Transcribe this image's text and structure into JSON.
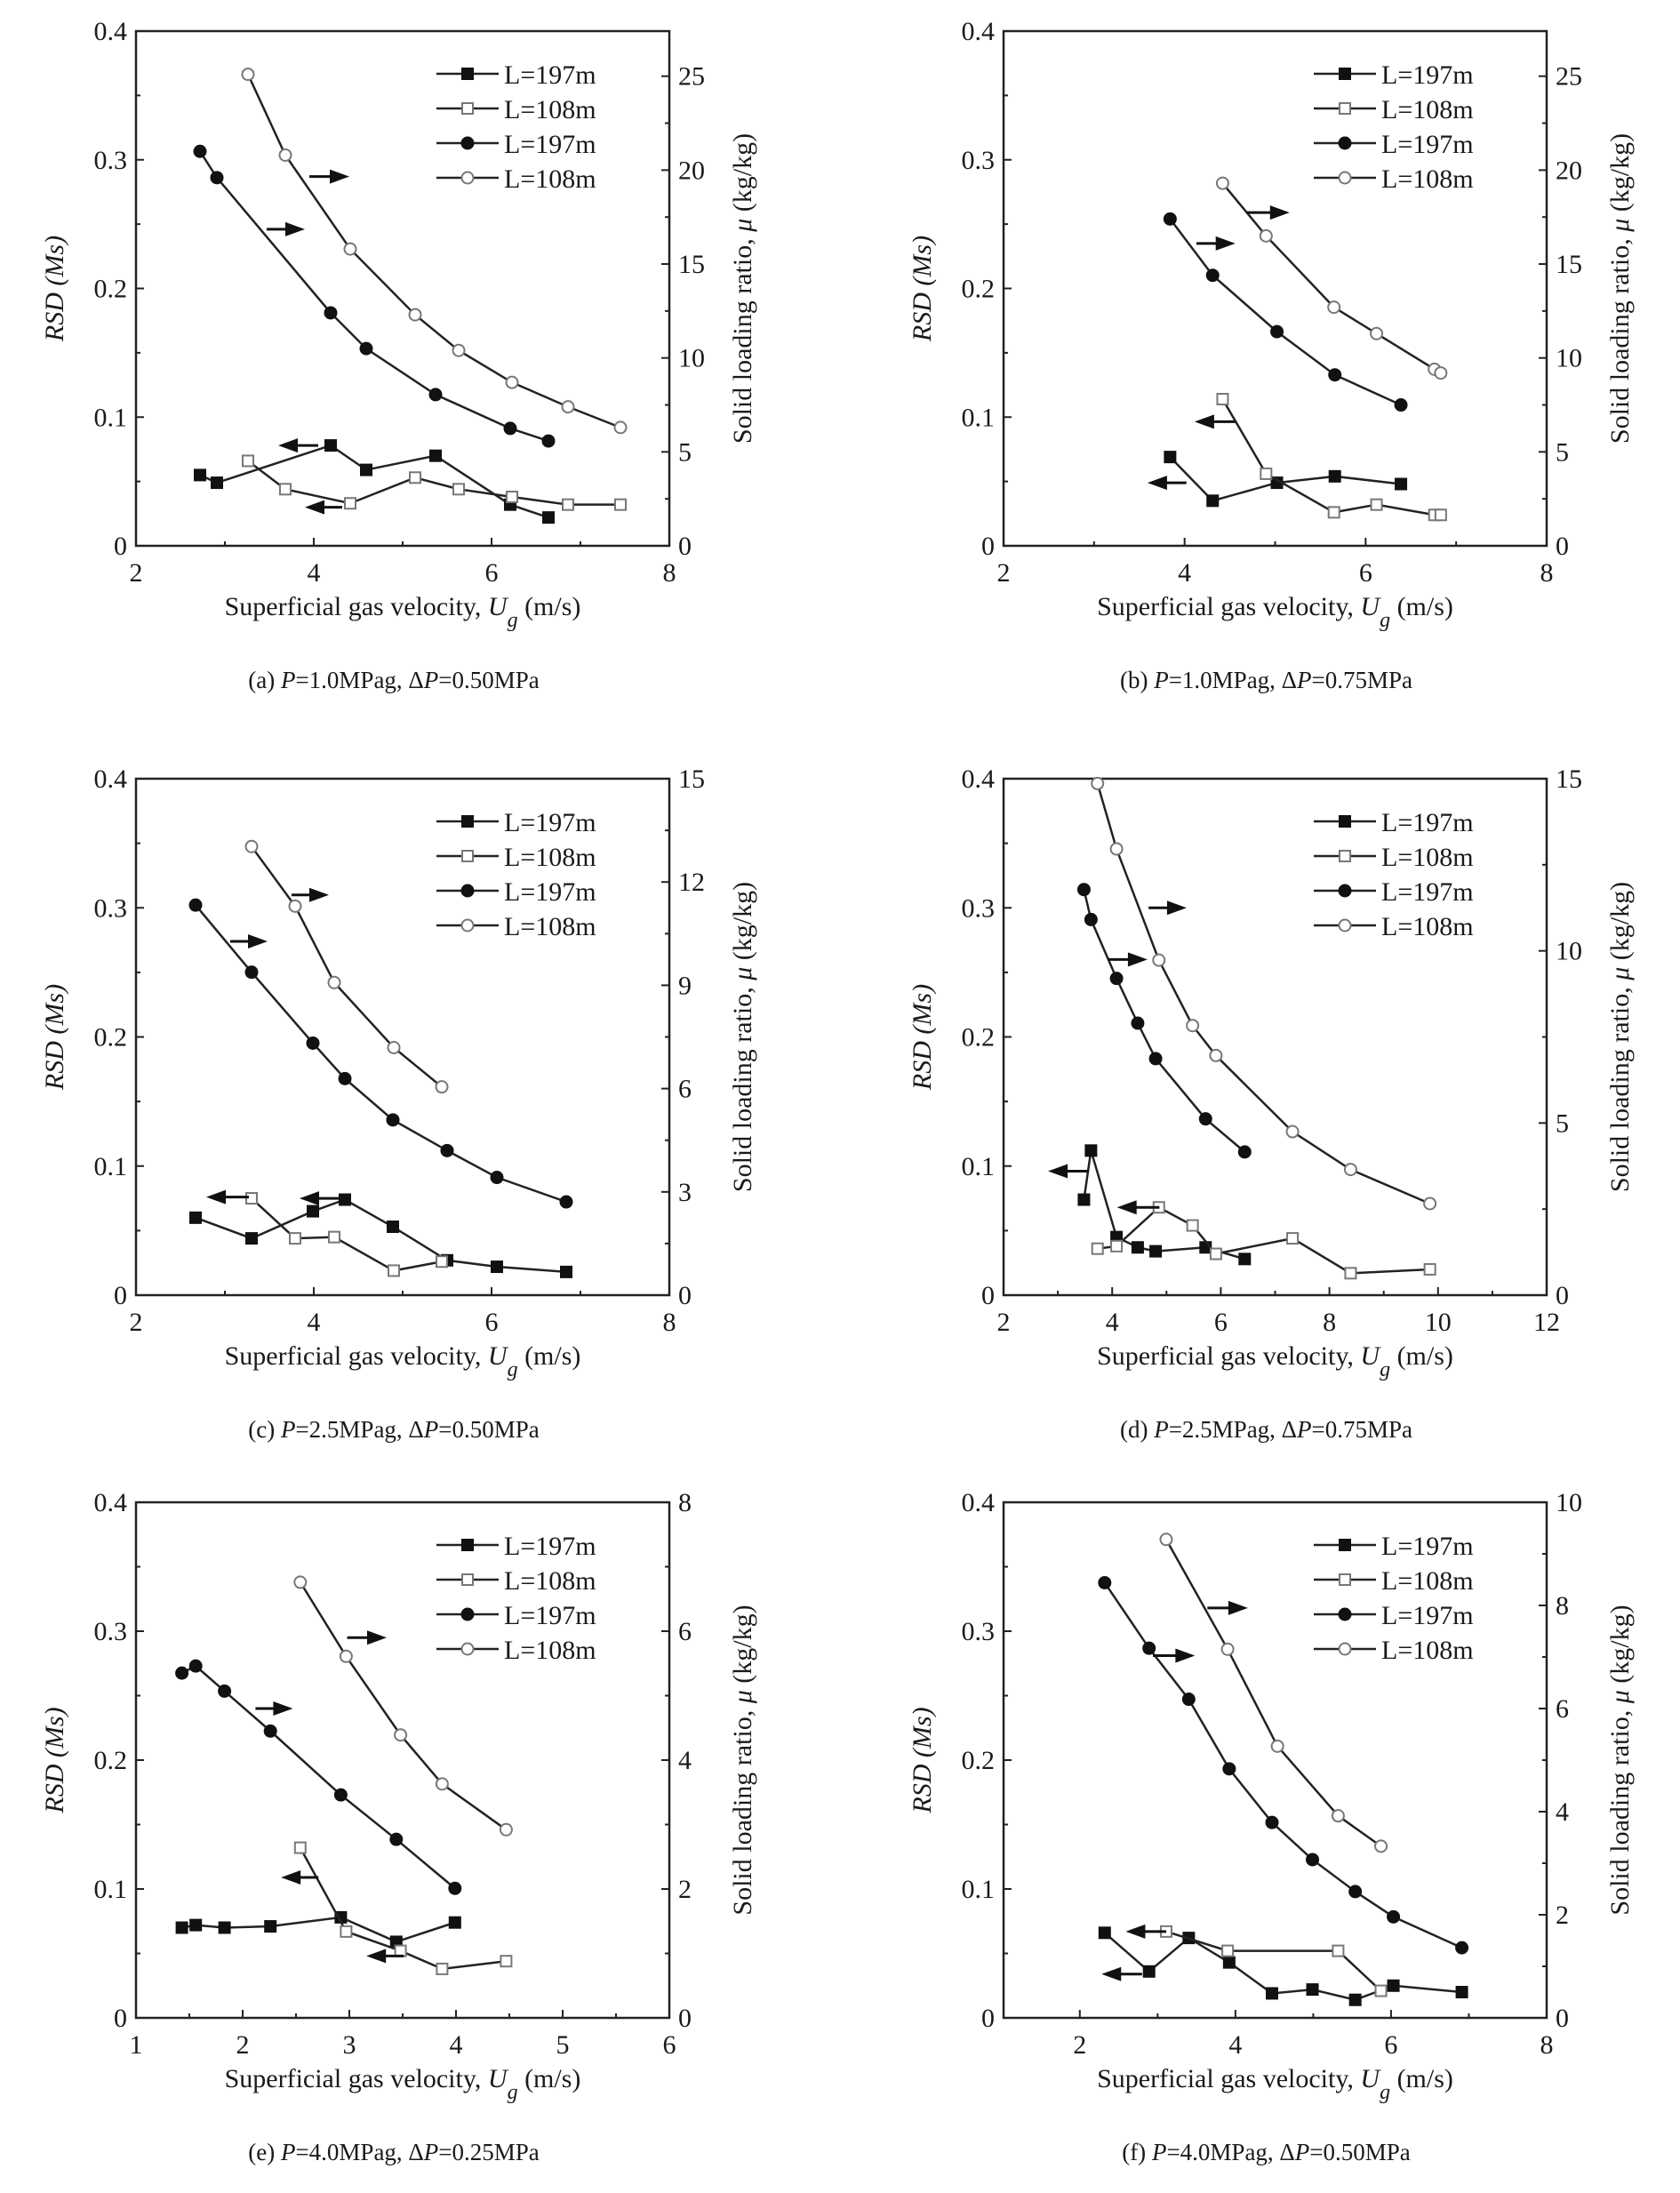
{
  "legend": [
    "L=197m",
    "L=108m",
    "L=197m",
    "L=108m"
  ],
  "chart_data": [
    {
      "type": "line",
      "caption": "(a) P=1.0MPag, ΔP=0.50MPa",
      "xlabel": "Superficial gas velocity, Ug (m/s)",
      "ylabel": "RSD (Ms)",
      "y2label": "Solid loading ratio, μ (kg/kg)",
      "xlim": [
        2,
        8
      ],
      "xticks": [
        2,
        4,
        6,
        8
      ],
      "ylim": [
        0,
        0.4
      ],
      "yticks": [
        0,
        0.1,
        0.2,
        0.3,
        0.4
      ],
      "y2lim": [
        0,
        27.4
      ],
      "y2ticks": [
        0,
        5,
        10,
        15,
        20,
        25
      ],
      "legend_position": "top-right",
      "series": [
        {
          "name": "L=197m",
          "marker": "square-filled",
          "axis": "left",
          "x": [
            2.72,
            2.91,
            4.19,
            4.59,
            5.37,
            6.21,
            6.64
          ],
          "y": [
            0.055,
            0.049,
            0.078,
            0.059,
            0.07,
            0.032,
            0.022
          ]
        },
        {
          "name": "L=108m",
          "marker": "square-open",
          "axis": "left",
          "x": [
            3.26,
            3.68,
            4.41,
            5.14,
            5.63,
            6.23,
            6.86,
            7.45
          ],
          "y": [
            0.066,
            0.044,
            0.033,
            0.053,
            0.044,
            0.038,
            0.032,
            0.032
          ]
        },
        {
          "name": "L=197m",
          "marker": "circle-filled",
          "axis": "right",
          "x": [
            2.72,
            2.91,
            4.19,
            4.59,
            5.37,
            6.21,
            6.64
          ],
          "y": [
            21.0,
            19.6,
            12.4,
            10.5,
            8.05,
            6.25,
            5.58
          ]
        },
        {
          "name": "L=108m",
          "marker": "circle-open",
          "axis": "right",
          "x": [
            3.26,
            3.68,
            4.41,
            5.14,
            5.63,
            6.23,
            6.86,
            7.45
          ],
          "y": [
            25.1,
            20.8,
            15.8,
            12.3,
            10.4,
            8.7,
            7.4,
            6.3
          ]
        }
      ],
      "arrows": [
        {
          "dir": "right",
          "x": [
            3.95,
            4.4
          ],
          "y": 0.287
        },
        {
          "dir": "right",
          "x": [
            3.47,
            3.9
          ],
          "y": 0.246
        },
        {
          "dir": "left",
          "x": [
            3.6,
            4.05
          ],
          "y": 0.078
        },
        {
          "dir": "left",
          "x": [
            3.9,
            4.32
          ],
          "y": 0.03
        }
      ]
    },
    {
      "type": "line",
      "caption": "(b) P=1.0MPag, ΔP=0.75MPa",
      "xlabel": "Superficial gas velocity, Ug (m/s)",
      "ylabel": "RSD (Ms)",
      "y2label": "Solid loading ratio, μ (kg/kg)",
      "xlim": [
        2,
        8
      ],
      "xticks": [
        2,
        4,
        6,
        8
      ],
      "ylim": [
        0,
        0.4
      ],
      "yticks": [
        0,
        0.1,
        0.2,
        0.3,
        0.4
      ],
      "y2lim": [
        0,
        27.4
      ],
      "y2ticks": [
        0,
        5,
        10,
        15,
        20,
        25
      ],
      "legend_position": "top-right",
      "series": [
        {
          "name": "L=197m",
          "marker": "square-filled",
          "axis": "left",
          "x": [
            3.84,
            4.31,
            5.02,
            5.66,
            6.39
          ],
          "y": [
            0.069,
            0.035,
            0.049,
            0.054,
            0.048
          ]
        },
        {
          "name": "L=108m",
          "marker": "square-open",
          "axis": "left",
          "x": [
            4.42,
            4.9,
            5.65,
            6.12,
            6.76,
            6.83
          ],
          "y": [
            0.114,
            0.056,
            0.026,
            0.032,
            0.024,
            0.024
          ]
        },
        {
          "name": "L=197m",
          "marker": "circle-filled",
          "axis": "right",
          "x": [
            3.84,
            4.31,
            5.02,
            5.66,
            6.39
          ],
          "y": [
            17.4,
            14.4,
            11.4,
            9.1,
            7.5
          ]
        },
        {
          "name": "L=108m",
          "marker": "circle-open",
          "axis": "right",
          "x": [
            4.42,
            4.9,
            5.65,
            6.12,
            6.76,
            6.83
          ],
          "y": [
            19.3,
            16.5,
            12.7,
            11.3,
            9.4,
            9.2
          ]
        }
      ],
      "arrows": [
        {
          "dir": "right",
          "x": [
            4.69,
            5.16
          ],
          "y": 0.259
        },
        {
          "dir": "right",
          "x": [
            4.13,
            4.56
          ],
          "y": 0.235
        },
        {
          "dir": "left",
          "x": [
            4.11,
            4.56
          ],
          "y": 0.0965
        },
        {
          "dir": "left",
          "x": [
            3.59,
            4.02
          ],
          "y": 0.049
        }
      ]
    },
    {
      "type": "line",
      "caption": "(c) P=2.5MPag, ΔP=0.50MPa",
      "xlabel": "Superficial gas velocity, Ug (m/s)",
      "ylabel": "RSD (Ms)",
      "y2label": "Solid loading ratio, μ (kg/kg)",
      "xlim": [
        2,
        8
      ],
      "xticks": [
        2,
        4,
        6,
        8
      ],
      "ylim": [
        0,
        0.4
      ],
      "yticks": [
        0,
        0.1,
        0.2,
        0.3,
        0.4
      ],
      "y2lim": [
        0,
        15
      ],
      "y2ticks": [
        0,
        3,
        6,
        9,
        12,
        15
      ],
      "legend_position": "top-right",
      "series": [
        {
          "name": "L=197m",
          "marker": "square-filled",
          "axis": "left",
          "x": [
            2.67,
            3.3,
            3.99,
            4.35,
            4.89,
            5.5,
            6.06,
            6.84
          ],
          "y": [
            0.06,
            0.044,
            0.065,
            0.074,
            0.053,
            0.027,
            0.022,
            0.018
          ]
        },
        {
          "name": "L=108m",
          "marker": "square-open",
          "axis": "left",
          "x": [
            3.3,
            3.79,
            4.23,
            4.9,
            5.44
          ],
          "y": [
            0.075,
            0.044,
            0.045,
            0.019,
            0.026
          ]
        },
        {
          "name": "L=197m",
          "marker": "circle-filled",
          "axis": "right",
          "x": [
            2.67,
            3.3,
            3.99,
            4.35,
            4.89,
            5.5,
            6.06,
            6.84
          ],
          "y": [
            11.33,
            9.38,
            7.32,
            6.29,
            5.09,
            4.2,
            3.42,
            2.71
          ]
        },
        {
          "name": "L=108m",
          "marker": "circle-open",
          "axis": "right",
          "x": [
            3.3,
            3.79,
            4.23,
            4.9,
            5.44
          ],
          "y": [
            13.03,
            11.3,
            9.08,
            7.19,
            6.05
          ]
        }
      ],
      "arrows": [
        {
          "dir": "right",
          "x": [
            3.75,
            4.17
          ],
          "y": 0.31
        },
        {
          "dir": "right",
          "x": [
            3.06,
            3.48
          ],
          "y": 0.274
        },
        {
          "dir": "left",
          "x": [
            2.79,
            3.27
          ],
          "y": 0.076
        },
        {
          "dir": "left",
          "x": [
            3.84,
            4.35
          ],
          "y": 0.075
        }
      ]
    },
    {
      "type": "line",
      "caption": "(d) P=2.5MPag, ΔP=0.75MPa",
      "xlabel": "Superficial gas velocity, Ug (m/s)",
      "ylabel": "RSD (Ms)",
      "y2label": "Solid loading ratio, μ (kg/kg)",
      "xlim": [
        2,
        12
      ],
      "xticks": [
        2,
        4,
        6,
        8,
        10,
        12
      ],
      "ylim": [
        0,
        0.4
      ],
      "yticks": [
        0,
        0.1,
        0.2,
        0.3,
        0.4
      ],
      "y2lim": [
        0,
        15
      ],
      "y2ticks": [
        0,
        5,
        10,
        15
      ],
      "legend_position": "top-right",
      "series": [
        {
          "name": "L=197m",
          "marker": "square-filled",
          "axis": "left",
          "x": [
            3.48,
            3.61,
            4.08,
            4.47,
            4.8,
            5.72,
            6.44
          ],
          "y": [
            0.074,
            0.112,
            0.045,
            0.037,
            0.034,
            0.037,
            0.028
          ]
        },
        {
          "name": "L=108m",
          "marker": "square-open",
          "axis": "left",
          "x": [
            3.73,
            4.08,
            4.86,
            5.48,
            5.91,
            7.32,
            8.39,
            9.85
          ],
          "y": [
            0.036,
            0.038,
            0.068,
            0.054,
            0.032,
            0.044,
            0.017,
            0.02
          ]
        },
        {
          "name": "L=197m",
          "marker": "circle-filled",
          "axis": "right",
          "x": [
            3.48,
            3.61,
            4.08,
            4.47,
            4.8,
            5.72,
            6.44
          ],
          "y": [
            11.78,
            10.91,
            9.2,
            7.9,
            6.87,
            5.12,
            4.16
          ]
        },
        {
          "name": "L=108m",
          "marker": "circle-open",
          "axis": "right",
          "x": [
            3.73,
            4.08,
            4.86,
            5.48,
            5.91,
            7.32,
            8.39,
            9.85
          ],
          "y": [
            14.86,
            12.96,
            9.73,
            7.83,
            6.96,
            4.75,
            3.65,
            2.66
          ]
        }
      ],
      "arrows": [
        {
          "dir": "right",
          "x": [
            4.67,
            5.37
          ],
          "y": 0.3
        },
        {
          "dir": "right",
          "x": [
            3.92,
            4.65
          ],
          "y": 0.26
        },
        {
          "dir": "left",
          "x": [
            2.82,
            3.57
          ],
          "y": 0.096
        },
        {
          "dir": "left",
          "x": [
            4.09,
            4.87
          ],
          "y": 0.068
        }
      ]
    },
    {
      "type": "line",
      "caption": "(e) P=4.0MPag, ΔP=0.25MPa",
      "xlabel": "Superficial gas velocity, Ug (m/s)",
      "ylabel": "RSD (Ms)",
      "y2label": "Solid loading ratio, μ (kg/kg)",
      "xlim": [
        1,
        6
      ],
      "xticks": [
        1,
        2,
        3,
        4,
        5,
        6
      ],
      "ylim": [
        0,
        0.4
      ],
      "yticks": [
        0,
        0.1,
        0.2,
        0.3,
        0.4
      ],
      "y2lim": [
        0,
        8
      ],
      "y2ticks": [
        0,
        2,
        4,
        6,
        8
      ],
      "legend_position": "top-right",
      "series": [
        {
          "name": "L=197m",
          "marker": "square-filled",
          "axis": "left",
          "x": [
            1.43,
            1.56,
            1.83,
            2.26,
            2.92,
            3.44,
            3.99
          ],
          "y": [
            0.07,
            0.072,
            0.07,
            0.071,
            0.078,
            0.059,
            0.074
          ]
        },
        {
          "name": "L=108m",
          "marker": "square-open",
          "axis": "left",
          "x": [
            2.54,
            2.97,
            3.48,
            3.87,
            4.47
          ],
          "y": [
            0.132,
            0.067,
            0.052,
            0.038,
            0.044
          ]
        },
        {
          "name": "L=197m",
          "marker": "circle-filled",
          "axis": "right",
          "x": [
            1.43,
            1.56,
            1.83,
            2.26,
            2.92,
            3.44,
            3.99
          ],
          "y": [
            5.35,
            5.46,
            5.07,
            4.45,
            3.46,
            2.77,
            2.01
          ]
        },
        {
          "name": "L=108m",
          "marker": "circle-open",
          "axis": "right",
          "x": [
            2.54,
            2.97,
            3.48,
            3.87,
            4.47
          ],
          "y": [
            6.76,
            5.61,
            4.39,
            3.63,
            2.92
          ]
        }
      ],
      "arrows": [
        {
          "dir": "right",
          "x": [
            2.98,
            3.35
          ],
          "y": 0.295
        },
        {
          "dir": "right",
          "x": [
            2.12,
            2.47
          ],
          "y": 0.24
        },
        {
          "dir": "left",
          "x": [
            2.36,
            2.71
          ],
          "y": 0.109
        },
        {
          "dir": "left",
          "x": [
            3.16,
            3.51
          ],
          "y": 0.048
        }
      ]
    },
    {
      "type": "line",
      "caption": "(f) P=4.0MPag, ΔP=0.50MPa",
      "xlabel": "Superficial gas velocity, Ug (m/s)",
      "ylabel": "RSD (Ms)",
      "y2label": "Solid loading ratio, μ (kg/kg)",
      "xlim": [
        1.02,
        8
      ],
      "xticks": [
        2,
        4,
        6,
        8
      ],
      "ylim": [
        0,
        0.4
      ],
      "yticks": [
        0,
        0.1,
        0.2,
        0.3,
        0.4
      ],
      "y2lim": [
        0,
        10
      ],
      "y2ticks": [
        0,
        2,
        4,
        6,
        8,
        10
      ],
      "legend_position": "top-right",
      "series": [
        {
          "name": "L=197m",
          "marker": "square-filled",
          "axis": "left",
          "x": [
            2.32,
            2.89,
            3.4,
            3.92,
            4.47,
            4.99,
            5.54,
            6.03,
            6.91
          ],
          "y": [
            0.066,
            0.036,
            0.062,
            0.043,
            0.019,
            0.022,
            0.014,
            0.025,
            0.02
          ]
        },
        {
          "name": "L=108m",
          "marker": "square-open",
          "axis": "left",
          "x": [
            3.11,
            3.9,
            5.32,
            5.87
          ],
          "y": [
            0.067,
            0.052,
            0.052,
            0.021
          ]
        },
        {
          "name": "L=197m",
          "marker": "circle-filled",
          "axis": "right",
          "x": [
            2.32,
            2.89,
            3.4,
            3.92,
            4.47,
            4.99,
            5.54,
            6.03,
            6.91
          ],
          "y": [
            8.44,
            7.17,
            6.18,
            4.83,
            3.79,
            3.07,
            2.45,
            1.96,
            1.36
          ]
        },
        {
          "name": "L=108m",
          "marker": "circle-open",
          "axis": "right",
          "x": [
            3.11,
            3.9,
            4.54,
            5.32,
            5.87
          ],
          "y": [
            9.28,
            7.15,
            5.27,
            3.92,
            3.33
          ]
        }
      ],
      "arrows": [
        {
          "dir": "right",
          "x": [
            3.64,
            4.16
          ],
          "y": 0.318
        },
        {
          "dir": "right",
          "x": [
            2.94,
            3.48
          ],
          "y": 0.281
        },
        {
          "dir": "left",
          "x": [
            2.59,
            3.11
          ],
          "y": 0.067
        },
        {
          "dir": "left",
          "x": [
            2.28,
            2.8
          ],
          "y": 0.034
        }
      ]
    }
  ]
}
